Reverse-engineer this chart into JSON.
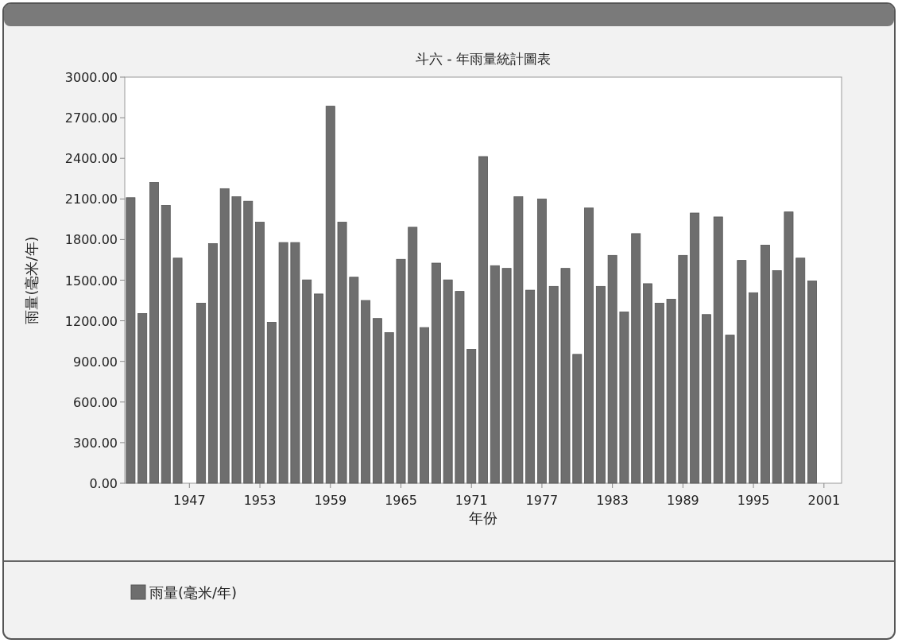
{
  "chart_data": {
    "type": "bar",
    "title": "斗六 - 年雨量統計圖表",
    "xlabel": "年份",
    "ylabel": "雨量(毫米/年)",
    "x": [
      1942,
      1943,
      1944,
      1945,
      1946,
      1948,
      1949,
      1950,
      1951,
      1952,
      1953,
      1954,
      1955,
      1956,
      1957,
      1958,
      1959,
      1960,
      1961,
      1962,
      1963,
      1964,
      1965,
      1966,
      1967,
      1968,
      1969,
      1970,
      1971,
      1972,
      1973,
      1974,
      1975,
      1976,
      1977,
      1978,
      1979,
      1980,
      1981,
      1982,
      1983,
      1984,
      1985,
      1986,
      1987,
      1988,
      1989,
      1990,
      1991,
      1992,
      1993,
      1994,
      1995,
      1996,
      1997,
      1998,
      1999,
      2000
    ],
    "series": [
      {
        "name": "雨量(毫米/年)",
        "color": "#6e6e6e",
        "values": [
          2109,
          1254,
          2222,
          2052,
          1663,
          1330,
          1770,
          2176,
          2117,
          2083,
          1928,
          1189,
          1778,
          1778,
          1502,
          1398,
          2785,
          1928,
          1522,
          1350,
          1217,
          1113,
          1654,
          1891,
          1150,
          1626,
          1502,
          1417,
          989,
          2413,
          1607,
          1587,
          2117,
          1426,
          2100,
          1454,
          1587,
          952,
          2033,
          1454,
          1683,
          1265,
          1844,
          1474,
          1330,
          1359,
          1683,
          1996,
          1246,
          1967,
          1094,
          1646,
          1407,
          1759,
          1570,
          2004,
          1663,
          1494
        ]
      }
    ],
    "xlim": [
      1941.5,
      2002.5
    ],
    "xticks": [
      1947,
      1953,
      1959,
      1965,
      1971,
      1977,
      1983,
      1989,
      1995,
      2001
    ],
    "ylim": [
      0,
      3000
    ],
    "yticks": [
      {
        "value": 0,
        "label": "0.00"
      },
      {
        "value": 300,
        "label": "300.00"
      },
      {
        "value": 600,
        "label": "600.00"
      },
      {
        "value": 900,
        "label": "900.00"
      },
      {
        "value": 1200,
        "label": "1200.00"
      },
      {
        "value": 1500,
        "label": "1500.00"
      },
      {
        "value": 1800,
        "label": "1800.00"
      },
      {
        "value": 2100,
        "label": "2100.00"
      },
      {
        "value": 2400,
        "label": "2400.00"
      },
      {
        "value": 2700,
        "label": "2700.00"
      },
      {
        "value": 3000,
        "label": "3000.00"
      }
    ],
    "grid": false,
    "legend": "bottom"
  }
}
